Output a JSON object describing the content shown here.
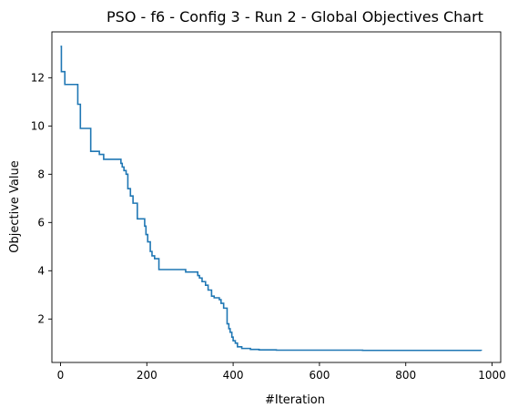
{
  "chart_data": {
    "type": "line",
    "title": "PSO - f6 - Config 3 - Run 2 - Global Objectives Chart",
    "xlabel": "#Iteration",
    "ylabel": "Objective Value",
    "xlim": [
      -20,
      1020
    ],
    "ylim": [
      0.2,
      13.9
    ],
    "xticks": [
      0,
      200,
      400,
      600,
      800,
      1000
    ],
    "yticks": [
      2,
      4,
      6,
      8,
      10,
      12
    ],
    "grid": false,
    "series": [
      {
        "color": "#1f77b4",
        "step": true,
        "x": [
          0,
          2,
          10,
          40,
          46,
          70,
          90,
          100,
          140,
          143,
          147,
          152,
          156,
          162,
          168,
          178,
          195,
          198,
          202,
          208,
          212,
          218,
          228,
          248,
          290,
          318,
          322,
          328,
          336,
          342,
          350,
          356,
          362,
          368,
          372,
          378,
          386,
          390,
          393,
          397,
          400,
          405,
          410,
          420,
          440,
          460,
          500,
          600,
          700,
          800,
          900,
          975
        ],
        "y": [
          13.3,
          12.25,
          11.72,
          10.9,
          9.9,
          8.95,
          8.82,
          8.62,
          8.45,
          8.3,
          8.15,
          8.0,
          7.4,
          7.1,
          6.8,
          6.15,
          5.85,
          5.5,
          5.2,
          4.8,
          4.62,
          4.5,
          4.05,
          4.05,
          3.95,
          3.8,
          3.7,
          3.55,
          3.4,
          3.2,
          2.95,
          2.88,
          2.88,
          2.8,
          2.65,
          2.45,
          1.8,
          1.6,
          1.45,
          1.25,
          1.1,
          1.0,
          0.85,
          0.78,
          0.74,
          0.72,
          0.71,
          0.71,
          0.7,
          0.7,
          0.7,
          0.69
        ]
      }
    ]
  }
}
